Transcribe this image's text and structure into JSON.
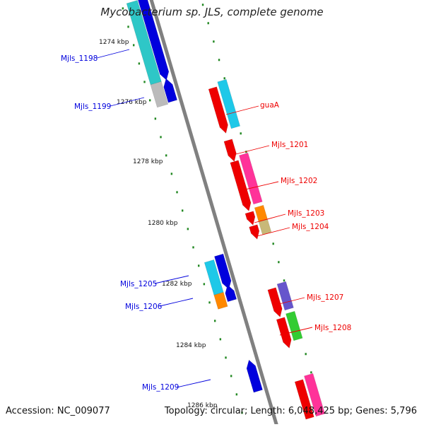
{
  "title": "Mycobacterium sp. JLS, complete genome",
  "footer": {
    "accession": "Accession: NC_009077",
    "summary": "Topology: circular; Length: 6,048,425 bp; Genes: 5,796"
  },
  "ticks": [
    "1274 kbp",
    "1276 kbp",
    "1278 kbp",
    "1280 kbp",
    "1282 kbp",
    "1284 kbp",
    "1286 kbp"
  ],
  "genes": [
    {
      "id": "Mjls_1198",
      "strand": "reverse",
      "color": "#2ec7c7"
    },
    {
      "id": "Mjls_1199",
      "strand": "reverse",
      "color": "#0000dd"
    },
    {
      "id": "guaA",
      "strand": "forward",
      "color": "#ee0000"
    },
    {
      "id": "Mjls_1201",
      "strand": "forward",
      "color": "#ee0000"
    },
    {
      "id": "Mjls_1202",
      "strand": "forward",
      "color": "#ee0000"
    },
    {
      "id": "Mjls_1203",
      "strand": "forward",
      "color": "#ee0000"
    },
    {
      "id": "Mjls_1204",
      "strand": "forward",
      "color": "#ee0000"
    },
    {
      "id": "Mjls_1205",
      "strand": "reverse",
      "color": "#0000dd"
    },
    {
      "id": "Mjls_1206",
      "strand": "reverse",
      "color": "#0000dd"
    },
    {
      "id": "Mjls_1207",
      "strand": "forward",
      "color": "#ee0000"
    },
    {
      "id": "Mjls_1208",
      "strand": "forward",
      "color": "#ee0000"
    },
    {
      "id": "Mjls_1209",
      "strand": "reverse",
      "color": "#0000dd"
    }
  ],
  "colors": {
    "forward": "#ee0000",
    "reverse": "#0000dd",
    "backbone": "#808080",
    "ticks": "#228822",
    "cyan": "#1ec8e8",
    "teal": "#2ec7c7",
    "pink": "#ff3399",
    "orange": "#ff8800",
    "khaki": "#c8b878",
    "purple": "#6655cc",
    "green": "#33cc33",
    "gray": "#bbbbbb"
  }
}
